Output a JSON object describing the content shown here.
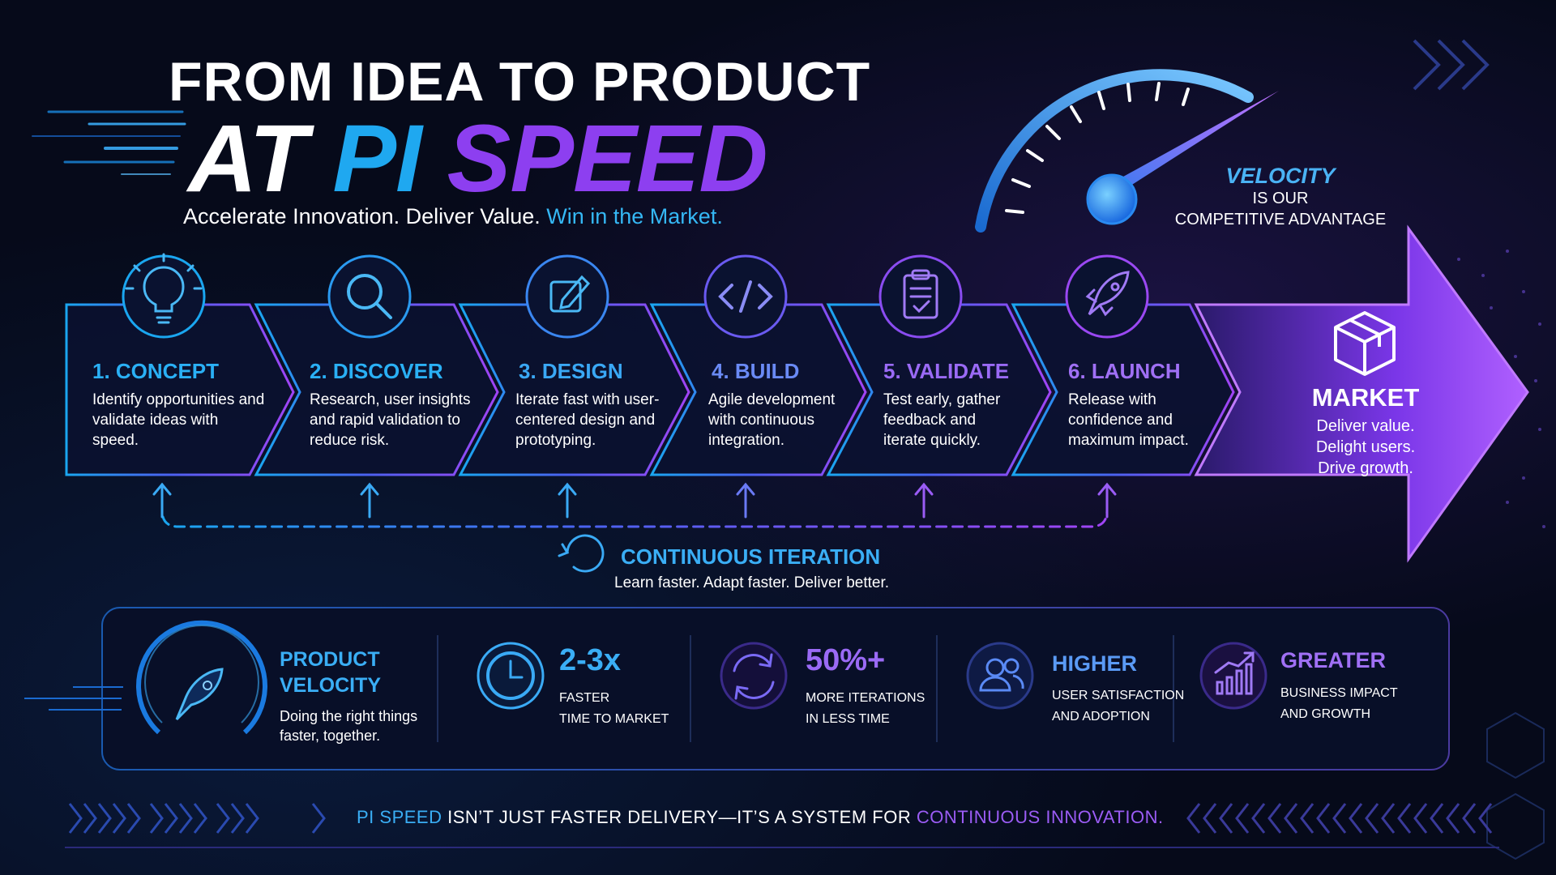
{
  "header": {
    "title_line1": "FROM IDEA TO PRODUCT",
    "title_line2_part1": "AT ",
    "title_line2_part2": "PI ",
    "title_line2_part3": "SPEED",
    "tagline_main": "Accelerate Innovation. Deliver Value. ",
    "tagline_highlight": "Win in the Market."
  },
  "velocity": {
    "headline": "VELOCITY",
    "line1": "IS OUR",
    "line2": "COMPETITIVE ADVANTAGE"
  },
  "steps": [
    {
      "title": "1. CONCEPT",
      "desc": "Identify opportunities and validate ideas with speed.",
      "color": "#2ab0f5",
      "icon": "lightbulb-icon"
    },
    {
      "title": "2. DISCOVER",
      "desc": "Research, user insights and rapid validation to reduce risk.",
      "color": "#2ab0f5",
      "icon": "magnifier-icon"
    },
    {
      "title": "3. DESIGN",
      "desc": "Iterate fast with user-centered design and prototyping.",
      "color": "#3aa8f5",
      "icon": "edit-pencil-icon"
    },
    {
      "title": "4. BUILD",
      "desc": "Agile development with continuous integration.",
      "color": "#6a8af5",
      "icon": "code-icon"
    },
    {
      "title": "5. VALIDATE",
      "desc": "Test early, gather feedback and iterate quickly.",
      "color": "#9a6af5",
      "icon": "clipboard-icon"
    },
    {
      "title": "6. LAUNCH",
      "desc": "Release with confidence and maximum impact.",
      "color": "#a070f5",
      "icon": "rocket-icon"
    }
  ],
  "market": {
    "title": "MARKET",
    "line1": "Deliver value.",
    "line2": "Delight users.",
    "line3": "Drive growth."
  },
  "iteration": {
    "title": "CONTINUOUS ITERATION",
    "subtitle": "Learn faster. Adapt faster. Deliver better."
  },
  "metrics": {
    "velocity": {
      "title1": "PRODUCT",
      "title2": "VELOCITY",
      "line1": "Doing the right things",
      "line2": "faster, together."
    },
    "m1": {
      "value": "2-3x",
      "line1": "FASTER",
      "line2": "TIME TO MARKET"
    },
    "m2": {
      "value": "50%+",
      "line1": "MORE ITERATIONS",
      "line2": "IN LESS TIME"
    },
    "m3": {
      "value": "HIGHER",
      "line1": "USER SATISFACTION",
      "line2": "AND ADOPTION"
    },
    "m4": {
      "value": "GREATER",
      "line1": "BUSINESS IMPACT",
      "line2": "AND GROWTH"
    }
  },
  "footer": {
    "part1": "PI SPEED",
    "part2": " ISN’T JUST FASTER DELIVERY—IT’S A SYSTEM FOR ",
    "part3": "CONTINUOUS INNOVATION."
  },
  "colors": {
    "cyan": "#1fa8f0",
    "purple": "#8d3ff0",
    "background": "#060a1a"
  }
}
